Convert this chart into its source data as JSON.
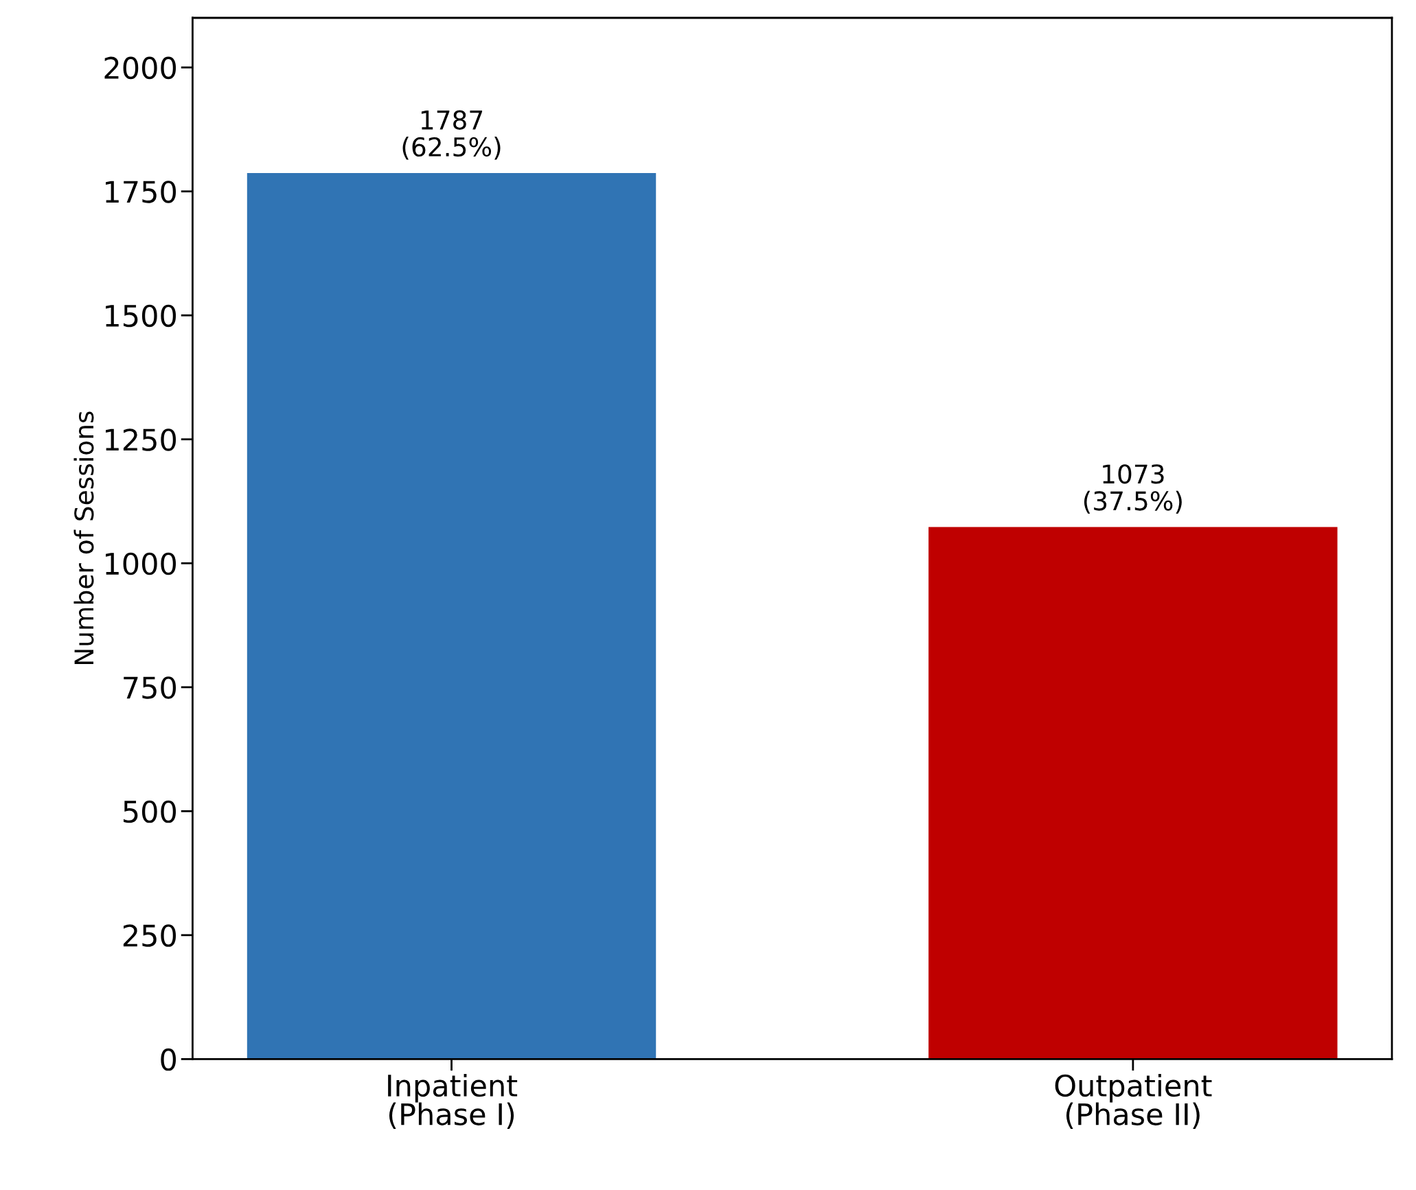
{
  "chart_data": {
    "type": "bar",
    "ylabel": "Number of Sessions",
    "categories": [
      "Inpatient\n(Phase I)",
      "Outpatient\n(Phase II)"
    ],
    "values": [
      1787,
      1073
    ],
    "colors": [
      "#3074b4",
      "#bf0000"
    ],
    "value_labels": [
      "1787\n(62.5%)",
      "1073\n(37.5%)"
    ],
    "ylim": [
      0,
      2100
    ],
    "yticks": [
      0,
      250,
      500,
      750,
      1000,
      1250,
      1500,
      1750,
      2000
    ],
    "grid": false,
    "legend": false
  }
}
